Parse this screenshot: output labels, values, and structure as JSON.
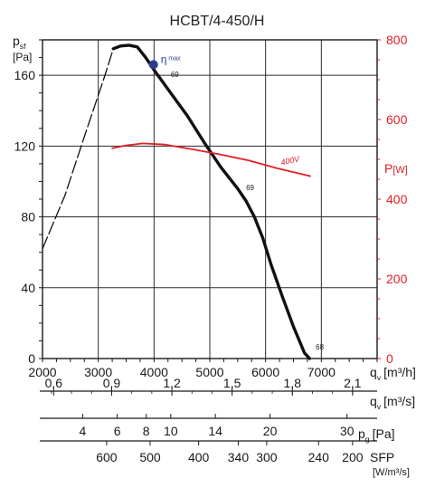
{
  "chart_data": {
    "type": "line",
    "title": "HCBT/4-450/H",
    "x_axis": {
      "label": "q",
      "label_sub": "v",
      "unit": "[m³/h]",
      "range": [
        2000,
        8000
      ],
      "ticks": [
        2000,
        3000,
        4000,
        5000,
        6000,
        7000
      ]
    },
    "y_left": {
      "label": "p",
      "label_sub": "sf",
      "unit": "[Pa]",
      "range": [
        0,
        180
      ],
      "ticks": [
        0,
        40,
        80,
        120,
        160
      ]
    },
    "y_right": {
      "label": "P",
      "unit": "[W]",
      "range": [
        0,
        800
      ],
      "ticks": [
        0,
        200,
        400,
        600,
        800
      ],
      "color": "#e31e24"
    },
    "grid": true,
    "series": [
      {
        "role": "pressure-curve",
        "axis": "left",
        "color": "#111111",
        "points": [
          [
            3270,
            175
          ],
          [
            3400,
            176.5
          ],
          [
            3550,
            177
          ],
          [
            3700,
            176
          ],
          [
            3850,
            170
          ],
          [
            4000,
            163
          ],
          [
            4300,
            150
          ],
          [
            4600,
            137
          ],
          [
            4900,
            122
          ],
          [
            5200,
            108
          ],
          [
            5500,
            96
          ],
          [
            5650,
            89
          ],
          [
            5800,
            80
          ],
          [
            5950,
            68
          ],
          [
            6100,
            53
          ],
          [
            6300,
            35
          ],
          [
            6500,
            18
          ],
          [
            6700,
            3
          ],
          [
            6790,
            0
          ]
        ]
      },
      {
        "role": "unstable-region",
        "axis": "left",
        "style": "dashed",
        "color": "#111111",
        "points": [
          [
            2000,
            62
          ],
          [
            2400,
            92
          ],
          [
            2800,
            130
          ],
          [
            3100,
            158
          ],
          [
            3270,
            175
          ]
        ]
      },
      {
        "name": "400V",
        "role": "power-curve",
        "axis": "right",
        "color": "#e31e24",
        "points": [
          [
            3250,
            528
          ],
          [
            3500,
            535
          ],
          [
            3800,
            540
          ],
          [
            4200,
            537
          ],
          [
            4700,
            525
          ],
          [
            5200,
            512
          ],
          [
            5700,
            497
          ],
          [
            6200,
            478
          ],
          [
            6800,
            458
          ]
        ]
      }
    ],
    "annotations": [
      {
        "text": "η",
        "sub": "max",
        "x": 3990,
        "y": 166
      },
      {
        "text": "69",
        "x": 4300,
        "y": 159
      },
      {
        "text": "69",
        "x": 5650,
        "y": 95
      },
      {
        "text": "68",
        "x": 6900,
        "y": 5
      },
      {
        "text": "400V",
        "x": 6450,
        "y": 490,
        "axis": "right",
        "color": "#e31e24"
      }
    ],
    "efficiency_point": {
      "x": 3990,
      "y": 166,
      "color": "#2a3c8f"
    },
    "secondary_scales": [
      {
        "label": "q",
        "label_sub": "v",
        "unit": "[m³/s]",
        "ticks": [
          {
            "text": "0,6",
            "x": 2200
          },
          {
            "text": "0,9",
            "x": 3240
          },
          {
            "text": "1,2",
            "x": 4320
          },
          {
            "text": "1,5",
            "x": 5400
          },
          {
            "text": "1,8",
            "x": 6480
          },
          {
            "text": "2,1",
            "x": 7560
          }
        ]
      },
      {
        "label": "p",
        "label_sub": "g",
        "unit": "[Pa]",
        "ticks": [
          {
            "text": "4",
            "x": 2720
          },
          {
            "text": "6",
            "x": 3340
          },
          {
            "text": "8",
            "x": 3860
          },
          {
            "text": "10",
            "x": 4300
          },
          {
            "text": "14",
            "x": 5100
          },
          {
            "text": "20",
            "x": 6080
          },
          {
            "text": "30",
            "x": 7460
          }
        ]
      },
      {
        "label": "SFP",
        "unit": "[W/m³/s]",
        "ticks": [
          {
            "text": "600",
            "x": 3150
          },
          {
            "text": "500",
            "x": 3930
          },
          {
            "text": "400",
            "x": 4800
          },
          {
            "text": "340",
            "x": 5510
          },
          {
            "text": "300",
            "x": 6020
          },
          {
            "text": "240",
            "x": 6950
          },
          {
            "text": "200",
            "x": 7560
          }
        ]
      }
    ]
  }
}
